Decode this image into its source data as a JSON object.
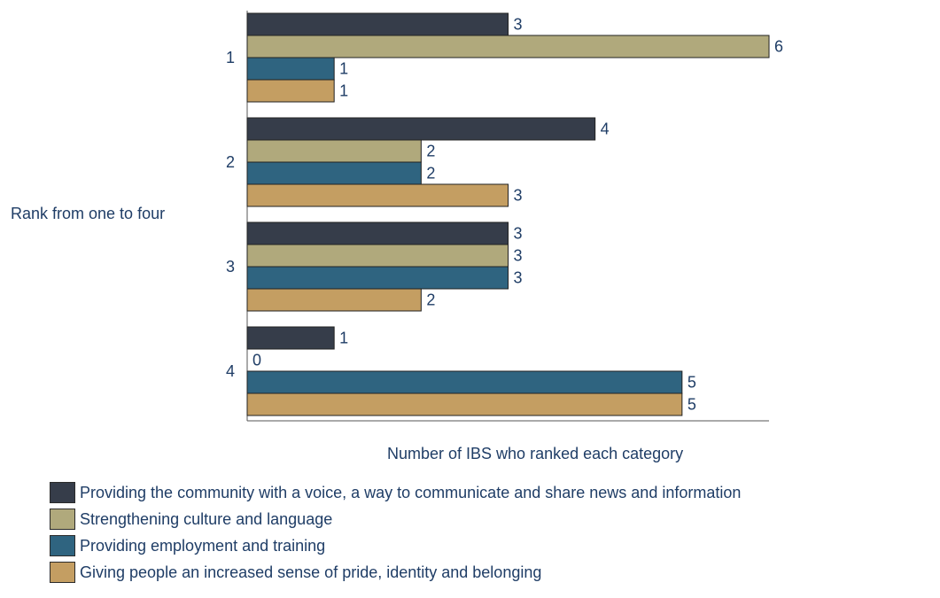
{
  "chart_data": {
    "type": "bar",
    "orientation": "horizontal",
    "categories": [
      "1",
      "2",
      "3",
      "4"
    ],
    "series": [
      {
        "name": "Providing the community with a voice, a way to communicate and share news and information",
        "color": "#363d4a",
        "values": [
          3,
          4,
          3,
          1
        ]
      },
      {
        "name": "Strengthening culture and language",
        "color": "#b0a97c",
        "values": [
          6,
          2,
          3,
          0
        ]
      },
      {
        "name": "Providing employment and training",
        "color": "#2f6480",
        "values": [
          1,
          2,
          3,
          5
        ]
      },
      {
        "name": "Giving people an increased sense of pride, identity and belonging",
        "color": "#c49e62",
        "values": [
          1,
          3,
          2,
          5
        ]
      }
    ],
    "title": "",
    "xlabel": "Number of IBS who ranked each category",
    "ylabel": "Rank from one to four",
    "xlim": [
      0,
      6
    ],
    "grid": false,
    "legend_position": "bottom-left"
  }
}
